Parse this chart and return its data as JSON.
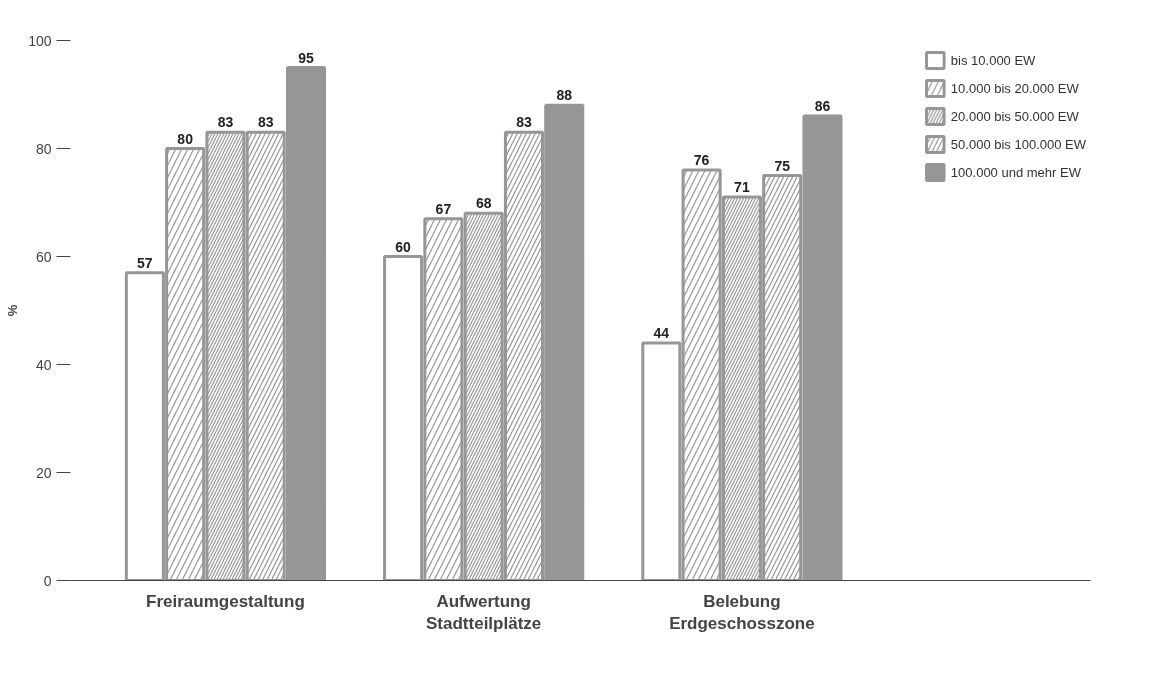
{
  "chart_data": {
    "type": "bar",
    "ylabel": "%",
    "categories": [
      "Freiraumgestaltung",
      "Aufwertung\nStadtteilplätze",
      "Belebung\nErdgeschosszone"
    ],
    "series": [
      {
        "name": "bis 10.000 EW",
        "color": "#969696",
        "values": [
          57,
          60,
          44
        ]
      },
      {
        "name": "10.000 bis 20.000 EW",
        "color": "#969696",
        "values": [
          80,
          67,
          76
        ]
      },
      {
        "name": "20.000 bis 50.000 EW",
        "color": "#969696",
        "values": [
          83,
          68,
          71
        ]
      },
      {
        "name": "50.000 bis 100.000 EW",
        "color": "#969696",
        "values": [
          83,
          83,
          75
        ]
      },
      {
        "name": "100.000 und mehr EW",
        "color": "#969696",
        "values": [
          95,
          88,
          86
        ]
      }
    ],
    "ylim": [
      0,
      100
    ],
    "yticks": [
      0,
      20,
      40,
      60,
      80,
      100
    ],
    "grid": false,
    "legend": "top right",
    "data_labels": true
  }
}
